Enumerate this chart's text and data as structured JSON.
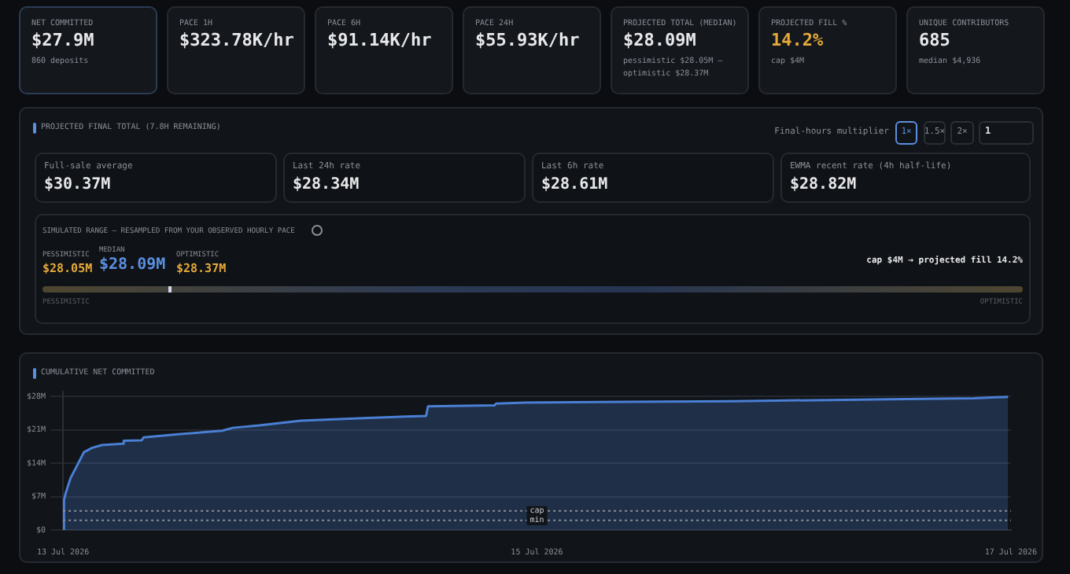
{
  "chart_data": [
    {
      "type": "other",
      "annotations": [
        "NET COMMITTED",
        "$27.9M",
        "860 deposits",
        "PACE 1H",
        "$323.78K/hr",
        "PACE 6H",
        "$91.14K/hr",
        "PACE 24H",
        "$55.93K/hr",
        "PROJECTED TOTAL (MEDIAN)",
        "$28.09M",
        "pessimistic $28.05M –",
        "optimistic $28.37M",
        "PROJECTED FILL %",
        "14.2%",
        "cap $4M",
        "UNIQUE CONTRIBUTORS",
        "685",
        "median $4,936",
        "PROJECTED FINAL TOTAL (7.8H REMAINING)",
        "Final-hours multiplier",
        "1×",
        "1.5×",
        "2×",
        "1",
        "Full-sale average",
        "$30.37M",
        "Last 24h rate",
        "$28.34M",
        "Last 6h rate",
        "$28.61M",
        "EWMA recent rate (4h half-life)",
        "$28.82M",
        "SIMULATED RANGE — RESAMPLED FROM YOUR OBSERVED HOURLY PACE",
        "PESSIMISTIC",
        "$28.05M",
        "MEDIAN",
        "$28.09M",
        "OPTIMISTIC",
        "$28.37M",
        "cap $4M → projected fill 14.2%",
        "PESSIMISTIC",
        "OPTIMISTIC"
      ]
    },
    {
      "type": "area",
      "title": "CUMULATIVE NET COMMITTED",
      "color": "#4a7fd4",
      "x": [
        "2026-07-13T00:00",
        "2026-07-13T00:06",
        "2026-07-13T00:17",
        "2026-07-13T00:46",
        "2026-07-13T01:21",
        "2026-07-13T02:07",
        "2026-07-13T02:56",
        "2026-07-13T03:56",
        "2026-07-13T06:03",
        "2026-07-13T06:09",
        "2026-07-13T07:58",
        "2026-07-13T08:10",
        "2026-07-13T11:54",
        "2026-07-13T16:08",
        "2026-07-13T17:11",
        "2026-07-13T19:52",
        "2026-07-14T00:06",
        "2026-07-14T06:55",
        "2026-07-14T12:46",
        "2026-07-14T12:58",
        "2026-07-14T19:41",
        "2026-07-14T19:52",
        "2026-07-14T22:51",
        "2026-07-15T19:58",
        "2026-07-16T11:49",
        "2026-07-16T20:15",
        "2026-07-16T23:43"
      ],
      "values": [
        0,
        6.3,
        7.8,
        10.9,
        13.2,
        16.3,
        17.2,
        17.8,
        18.1,
        18.7,
        18.8,
        19.4,
        20.1,
        20.8,
        21.4,
        21.9,
        22.9,
        23.5,
        23.9,
        25.9,
        26.1,
        26.5,
        26.7,
        27,
        27.4,
        27.6,
        27.9
      ],
      "xlim": [
        "2026-07-13T00:00",
        "2026-07-17T00:00"
      ],
      "xticks": [
        {
          "value": "2026-07-13",
          "label": "13 Jul 2026"
        },
        {
          "value": "2026-07-15",
          "label": "15 Jul 2026"
        },
        {
          "value": "2026-07-17",
          "label": "17 Jul 2026"
        }
      ],
      "ylim": [
        0,
        29
      ],
      "yticks": [
        {
          "value": 0,
          "label": "$0"
        },
        {
          "value": 7,
          "label": "$7M"
        },
        {
          "value": 14,
          "label": "$14M"
        },
        {
          "value": 21,
          "label": "$21M"
        },
        {
          "value": 28,
          "label": "$28M"
        }
      ],
      "grid": "y",
      "ref_lines": [
        {
          "axis": "y",
          "value": 4,
          "label": "cap",
          "line_style": "dotted"
        },
        {
          "axis": "y",
          "value": 2,
          "label": "min",
          "line_style": "dotted"
        }
      ]
    }
  ]
}
